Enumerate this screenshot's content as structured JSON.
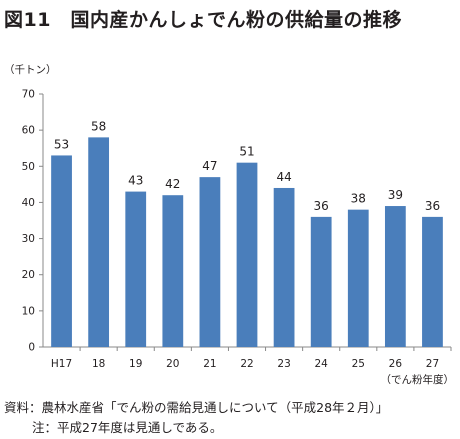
{
  "figure": {
    "title": "図11　国内産かんしょでん粉の供給量の推移",
    "source": "資料：農林水産省「でん粉の需給見通しについて（平成28年２月）」",
    "note": "注：平成27年度は見通しである。"
  },
  "chart_data": {
    "type": "bar",
    "unit_label": "（千トン）",
    "x_unit_label": "（でん粉年度）",
    "categories": [
      "H17",
      "18",
      "19",
      "20",
      "21",
      "22",
      "23",
      "24",
      "25",
      "26",
      "27"
    ],
    "values": [
      53,
      58,
      43,
      42,
      47,
      51,
      44,
      36,
      38,
      39,
      36
    ],
    "ylim": [
      0,
      70
    ],
    "yticks": [
      0,
      10,
      20,
      30,
      40,
      50,
      60,
      70
    ],
    "grid": false,
    "bar_color": "#4a7ebb",
    "axis_color": "#888888"
  }
}
